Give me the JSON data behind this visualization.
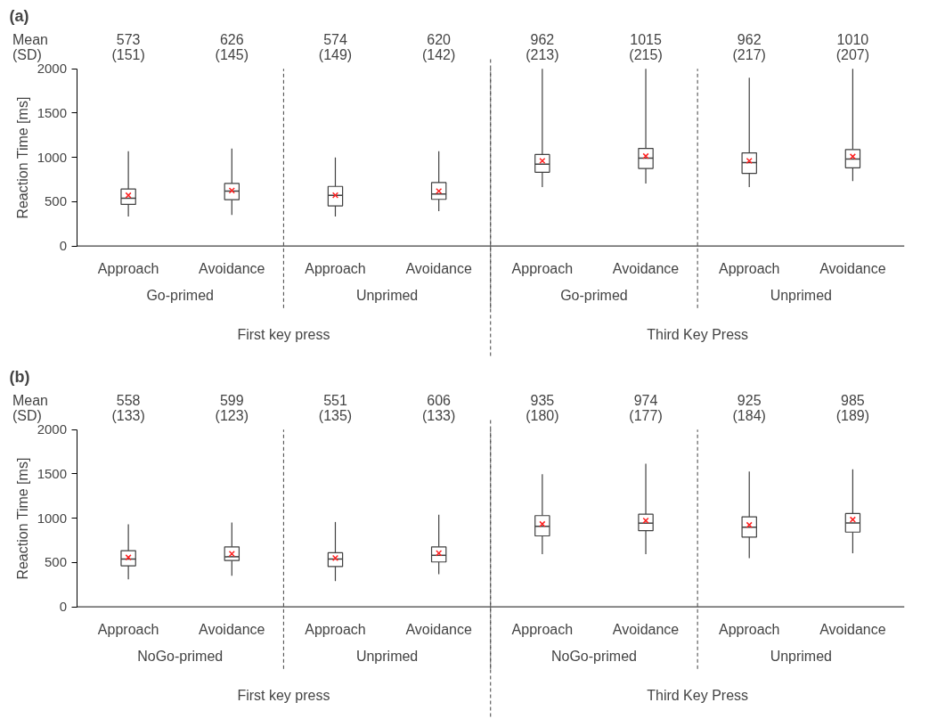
{
  "chart_data": [
    {
      "type": "box",
      "title": "(a)",
      "ylabel": "Reaction Time [ms]",
      "categories": [
        "Approach",
        "Avoidance",
        "Approach",
        "Avoidance",
        "Approach",
        "Avoidance",
        "Approach",
        "Avoidance"
      ],
      "boxes": [
        {
          "low": 333,
          "q1": 470,
          "median": 540,
          "q3": 643,
          "high": 1070,
          "mean": 573
        },
        {
          "low": 350,
          "q1": 523,
          "median": 620,
          "q3": 706,
          "high": 1100,
          "mean": 626
        },
        {
          "low": 333,
          "q1": 453,
          "median": 573,
          "q3": 673,
          "high": 1000,
          "mean": 574
        },
        {
          "low": 393,
          "q1": 527,
          "median": 587,
          "q3": 716,
          "high": 1070,
          "mean": 620
        },
        {
          "low": 666,
          "q1": 833,
          "median": 923,
          "q3": 1033,
          "high": 2000,
          "mean": 962
        },
        {
          "low": 706,
          "q1": 876,
          "median": 993,
          "q3": 1102,
          "high": 2000,
          "mean": 1015
        },
        {
          "low": 666,
          "q1": 820,
          "median": 943,
          "q3": 1052,
          "high": 1900,
          "mean": 962
        },
        {
          "low": 733,
          "q1": 883,
          "median": 983,
          "q3": 1089,
          "high": 2000,
          "mean": 1010
        }
      ],
      "ylim": [
        0,
        2000
      ],
      "yticks": [
        0,
        500,
        1000,
        1500,
        2000
      ],
      "grid": false,
      "annotations": [
        "Mean",
        "(SD)",
        "573\n(151)",
        "626\n(145)",
        "574\n(149)",
        "620\n(142)",
        "962\n(213)",
        "1015\n(215)",
        "962\n(217)",
        "1010\n(207)",
        "Go-primed",
        "Unprimed",
        "Go-primed",
        "Unprimed",
        "First key press",
        "Third Key Press"
      ]
    },
    {
      "type": "box",
      "title": "(b)",
      "ylabel": "Reaction Time [ms]",
      "categories": [
        "Approach",
        "Avoidance",
        "Approach",
        "Avoidance",
        "Approach",
        "Avoidance",
        "Approach",
        "Avoidance"
      ],
      "boxes": [
        {
          "low": 311,
          "q1": 464,
          "median": 540,
          "q3": 634,
          "high": 932,
          "mean": 558
        },
        {
          "low": 350,
          "q1": 523,
          "median": 566,
          "q3": 677,
          "high": 952,
          "mean": 599
        },
        {
          "low": 291,
          "q1": 455,
          "median": 540,
          "q3": 611,
          "high": 958,
          "mean": 551
        },
        {
          "low": 370,
          "q1": 507,
          "median": 582,
          "q3": 677,
          "high": 1040,
          "mean": 606
        },
        {
          "low": 595,
          "q1": 801,
          "median": 909,
          "q3": 1030,
          "high": 1498,
          "mean": 935
        },
        {
          "low": 595,
          "q1": 860,
          "median": 945,
          "q3": 1046,
          "high": 1615,
          "mean": 974
        },
        {
          "low": 549,
          "q1": 788,
          "median": 899,
          "q3": 1017,
          "high": 1527,
          "mean": 925
        },
        {
          "low": 605,
          "q1": 844,
          "median": 948,
          "q3": 1053,
          "high": 1553,
          "mean": 985
        }
      ],
      "ylim": [
        0,
        2000
      ],
      "yticks": [
        0,
        500,
        1000,
        1500,
        2000
      ],
      "grid": false,
      "annotations": [
        "Mean",
        "(SD)",
        "558\n(133)",
        "599\n(123)",
        "551\n(135)",
        "606\n(133)",
        "935\n(180)",
        "974\n(177)",
        "925\n(184)",
        "985\n(189)",
        "NoGo-primed",
        "Unprimed",
        "NoGo-primed",
        "Unprimed",
        "First key press",
        "Third Key Press"
      ]
    }
  ]
}
